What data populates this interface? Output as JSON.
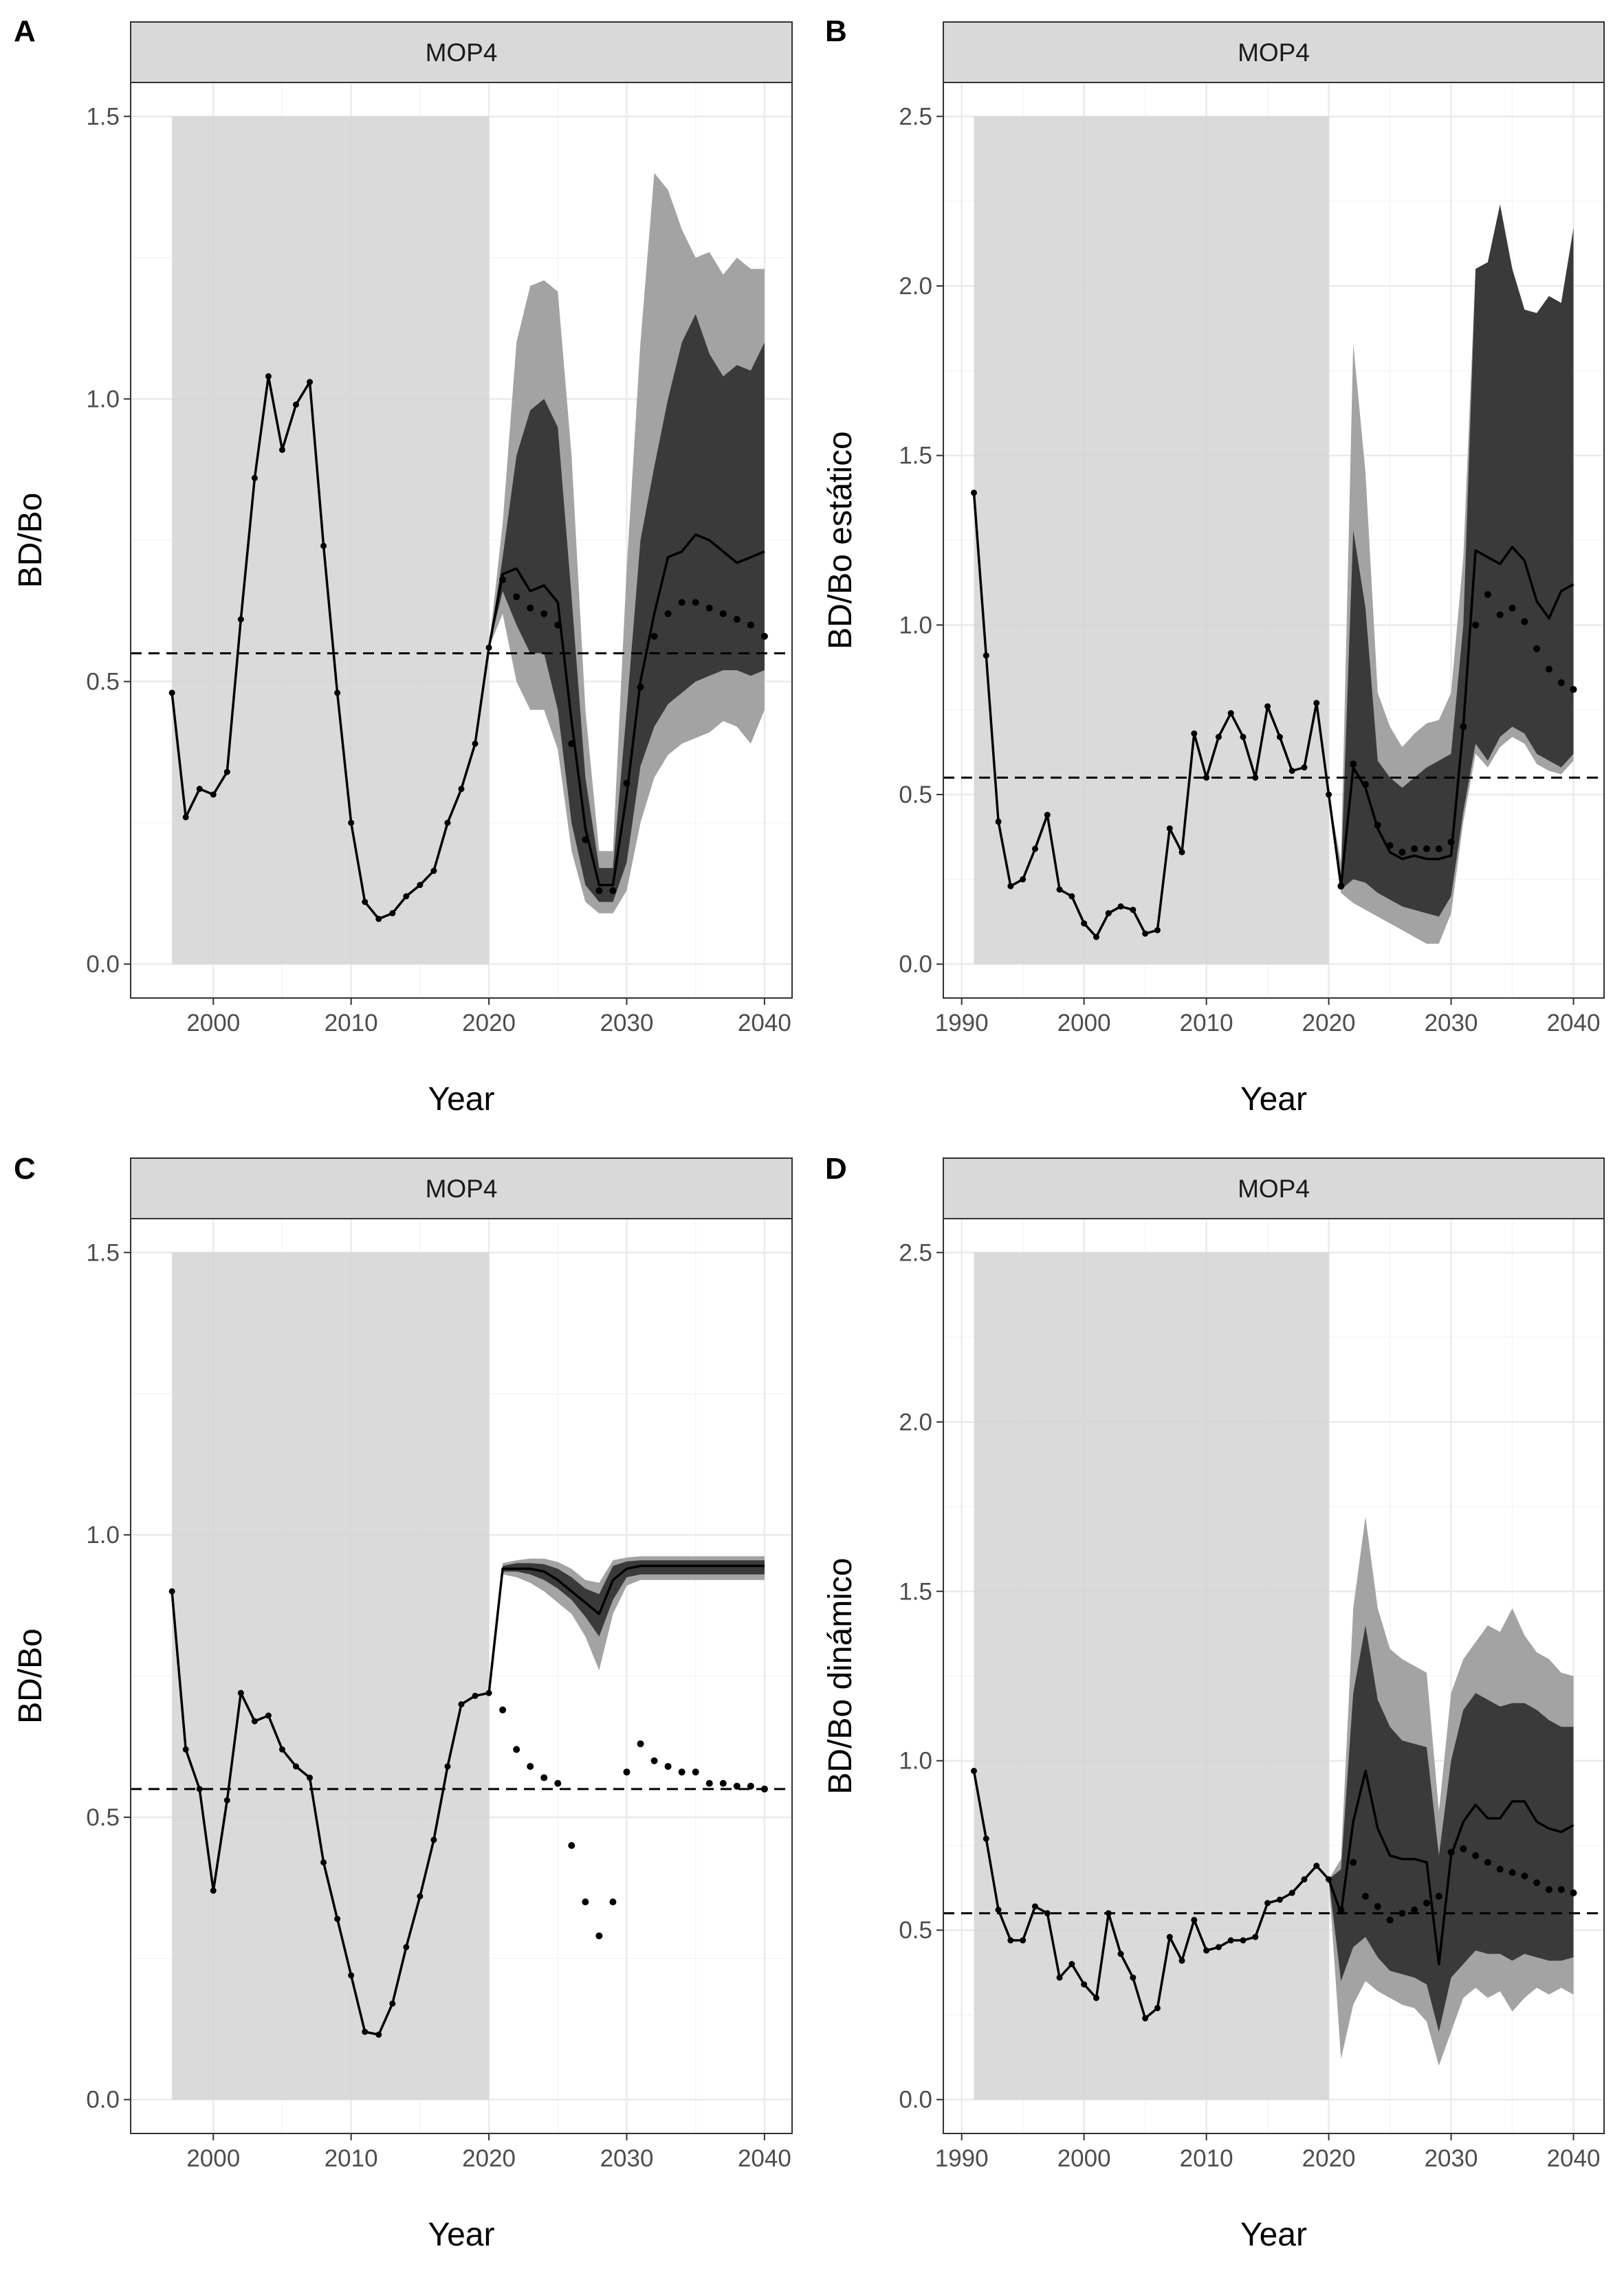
{
  "colors": {
    "shaded_period": "#d3d3d3",
    "band_outer": "#a3a3a3",
    "band_inner": "#3a3a3a",
    "line": "#000000",
    "strip": "#d9d9d9",
    "grid_major": "#ebebeb",
    "grid_minor": "#f5f5f5"
  },
  "chart_data": [
    {
      "tag": "A",
      "type": "line",
      "strip": "MOP4",
      "xlabel": "Year",
      "ylabel": "BD/Bo",
      "xlim": [
        1994,
        2042
      ],
      "ylim": [
        -0.06,
        1.56
      ],
      "xticks": [
        2000,
        2010,
        2020,
        2030,
        2040
      ],
      "yticks": [
        "0.0",
        "0.5",
        "1.0",
        "1.5"
      ],
      "grid": true,
      "reference_line": 0.55,
      "shaded_period": {
        "x": [
          1997,
          2020
        ],
        "y": [
          0,
          1.5
        ]
      },
      "historical": {
        "x": [
          1997,
          1998,
          1999,
          2000,
          2001,
          2002,
          2003,
          2004,
          2005,
          2006,
          2007,
          2008,
          2009,
          2010,
          2011,
          2012,
          2013,
          2014,
          2015,
          2016,
          2017,
          2018,
          2019,
          2020
        ],
        "y": [
          0.48,
          0.26,
          0.31,
          0.3,
          0.34,
          0.61,
          0.86,
          1.04,
          0.91,
          0.99,
          1.03,
          0.74,
          0.48,
          0.25,
          0.11,
          0.08,
          0.09,
          0.12,
          0.14,
          0.165,
          0.25,
          0.31,
          0.39,
          0.56
        ]
      },
      "projection": {
        "x": [
          2020,
          2021,
          2022,
          2023,
          2024,
          2025,
          2026,
          2027,
          2028,
          2029,
          2030,
          2031,
          2032,
          2033,
          2034,
          2035,
          2036,
          2037,
          2038,
          2039,
          2040
        ],
        "median": [
          0.56,
          0.69,
          0.7,
          0.66,
          0.67,
          0.64,
          0.43,
          0.24,
          0.14,
          0.14,
          0.3,
          0.5,
          0.62,
          0.72,
          0.73,
          0.76,
          0.75,
          0.73,
          0.71,
          0.72,
          0.73
        ],
        "inner_low": [
          0.56,
          0.66,
          0.6,
          0.55,
          0.55,
          0.45,
          0.25,
          0.14,
          0.11,
          0.11,
          0.18,
          0.35,
          0.42,
          0.46,
          0.48,
          0.5,
          0.51,
          0.52,
          0.52,
          0.51,
          0.52
        ],
        "inner_high": [
          0.56,
          0.72,
          0.9,
          0.98,
          1.0,
          0.95,
          0.65,
          0.33,
          0.17,
          0.17,
          0.45,
          0.75,
          0.88,
          1.0,
          1.1,
          1.15,
          1.08,
          1.04,
          1.06,
          1.05,
          1.1
        ],
        "outer_low": [
          0.56,
          0.62,
          0.5,
          0.45,
          0.45,
          0.38,
          0.2,
          0.11,
          0.09,
          0.09,
          0.13,
          0.25,
          0.33,
          0.37,
          0.39,
          0.4,
          0.41,
          0.43,
          0.42,
          0.39,
          0.45
        ],
        "outer_high": [
          0.56,
          0.78,
          1.1,
          1.2,
          1.21,
          1.19,
          0.9,
          0.45,
          0.2,
          0.2,
          0.7,
          1.1,
          1.4,
          1.37,
          1.3,
          1.25,
          1.26,
          1.22,
          1.25,
          1.23,
          1.23
        ],
        "deterministic": [
          0.56,
          0.68,
          0.65,
          0.63,
          0.62,
          0.6,
          0.39,
          0.22,
          0.13,
          0.13,
          0.32,
          0.49,
          0.58,
          0.62,
          0.64,
          0.64,
          0.63,
          0.62,
          0.61,
          0.6,
          0.58
        ]
      }
    },
    {
      "tag": "B",
      "type": "line",
      "strip": "MOP4",
      "xlabel": "Year",
      "ylabel": "BD/Bo estático",
      "xlim": [
        1988.5,
        2042.5
      ],
      "ylim": [
        -0.1,
        2.6
      ],
      "xticks": [
        1990,
        2000,
        2010,
        2020,
        2030,
        2040
      ],
      "yticks": [
        "0.0",
        "0.5",
        "1.0",
        "1.5",
        "2.0",
        "2.5"
      ],
      "grid": true,
      "reference_line": 0.55,
      "shaded_period": {
        "x": [
          1991,
          2020
        ],
        "y": [
          0,
          2.5
        ]
      },
      "historical": {
        "x": [
          1991,
          1992,
          1993,
          1994,
          1995,
          1996,
          1997,
          1998,
          1999,
          2000,
          2001,
          2002,
          2003,
          2004,
          2005,
          2006,
          2007,
          2008,
          2009,
          2010,
          2011,
          2012,
          2013,
          2014,
          2015,
          2016,
          2017,
          2018,
          2019,
          2020
        ],
        "y": [
          1.39,
          0.91,
          0.42,
          0.23,
          0.25,
          0.34,
          0.44,
          0.22,
          0.2,
          0.12,
          0.08,
          0.15,
          0.17,
          0.16,
          0.09,
          0.1,
          0.4,
          0.33,
          0.68,
          0.55,
          0.67,
          0.74,
          0.67,
          0.55,
          0.76,
          0.67,
          0.57,
          0.58,
          0.77,
          0.5
        ]
      },
      "projection": {
        "x": [
          2020,
          2021,
          2022,
          2023,
          2024,
          2025,
          2026,
          2027,
          2028,
          2029,
          2030,
          2031,
          2032,
          2033,
          2034,
          2035,
          2036,
          2037,
          2038,
          2039,
          2040
        ],
        "median": [
          0.5,
          0.23,
          0.58,
          0.52,
          0.4,
          0.33,
          0.31,
          0.32,
          0.31,
          0.31,
          0.32,
          0.7,
          1.22,
          1.2,
          1.18,
          1.23,
          1.19,
          1.07,
          1.02,
          1.1,
          1.12
        ],
        "inner_low": [
          0.5,
          0.22,
          0.25,
          0.24,
          0.21,
          0.19,
          0.17,
          0.16,
          0.15,
          0.14,
          0.2,
          0.45,
          0.65,
          0.6,
          0.67,
          0.7,
          0.68,
          0.62,
          0.6,
          0.58,
          0.62
        ],
        "inner_high": [
          0.5,
          0.26,
          1.28,
          1.05,
          0.6,
          0.55,
          0.52,
          0.55,
          0.58,
          0.6,
          0.62,
          1.0,
          2.05,
          2.07,
          2.24,
          2.05,
          1.93,
          1.92,
          1.97,
          1.95,
          2.17
        ],
        "outer_low": [
          0.5,
          0.21,
          0.18,
          0.16,
          0.14,
          0.12,
          0.1,
          0.08,
          0.06,
          0.06,
          0.15,
          0.42,
          0.62,
          0.58,
          0.64,
          0.67,
          0.65,
          0.59,
          0.57,
          0.56,
          0.6
        ],
        "outer_high": [
          0.5,
          0.3,
          1.83,
          1.45,
          0.8,
          0.7,
          0.64,
          0.68,
          0.71,
          0.72,
          0.8,
          1.2,
          2.05,
          2.07,
          2.24,
          2.05,
          1.93,
          1.92,
          1.97,
          1.95,
          2.17
        ],
        "deterministic": [
          0.5,
          0.23,
          0.59,
          0.53,
          0.41,
          0.35,
          0.33,
          0.34,
          0.34,
          0.34,
          0.36,
          0.7,
          1.0,
          1.09,
          1.03,
          1.05,
          1.01,
          0.93,
          0.87,
          0.83,
          0.81
        ]
      }
    },
    {
      "tag": "C",
      "type": "line",
      "strip": "MOP4",
      "xlabel": "Year",
      "ylabel": "BD/Bo",
      "xlim": [
        1994,
        2042
      ],
      "ylim": [
        -0.06,
        1.56
      ],
      "xticks": [
        2000,
        2010,
        2020,
        2030,
        2040
      ],
      "yticks": [
        "0.0",
        "0.5",
        "1.0",
        "1.5"
      ],
      "grid": true,
      "reference_line": 0.55,
      "shaded_period": {
        "x": [
          1997,
          2020
        ],
        "y": [
          0,
          1.5
        ]
      },
      "historical": {
        "x": [
          1997,
          1998,
          1999,
          2000,
          2001,
          2002,
          2003,
          2004,
          2005,
          2006,
          2007,
          2008,
          2009,
          2010,
          2011,
          2012,
          2013,
          2014,
          2015,
          2016,
          2017,
          2018,
          2019,
          2020
        ],
        "y": [
          0.9,
          0.62,
          0.55,
          0.37,
          0.53,
          0.72,
          0.67,
          0.68,
          0.62,
          0.59,
          0.57,
          0.42,
          0.32,
          0.22,
          0.12,
          0.115,
          0.17,
          0.27,
          0.36,
          0.46,
          0.59,
          0.7,
          0.715,
          0.72
        ]
      },
      "projection": {
        "x": [
          2020,
          2021,
          2022,
          2023,
          2024,
          2025,
          2026,
          2027,
          2028,
          2029,
          2030,
          2031,
          2032,
          2033,
          2034,
          2035,
          2036,
          2037,
          2038,
          2039,
          2040
        ],
        "median": [
          0.72,
          0.94,
          0.94,
          0.94,
          0.935,
          0.92,
          0.9,
          0.88,
          0.86,
          0.92,
          0.94,
          0.945,
          0.945,
          0.945,
          0.945,
          0.945,
          0.945,
          0.945,
          0.945,
          0.945,
          0.945
        ],
        "inner_low": [
          0.72,
          0.935,
          0.935,
          0.93,
          0.92,
          0.905,
          0.885,
          0.855,
          0.82,
          0.885,
          0.925,
          0.93,
          0.93,
          0.93,
          0.93,
          0.93,
          0.93,
          0.93,
          0.93,
          0.93,
          0.93
        ],
        "inner_high": [
          0.72,
          0.945,
          0.95,
          0.95,
          0.948,
          0.94,
          0.925,
          0.905,
          0.895,
          0.945,
          0.953,
          0.955,
          0.955,
          0.955,
          0.955,
          0.955,
          0.955,
          0.955,
          0.955,
          0.955,
          0.955
        ],
        "outer_low": [
          0.72,
          0.93,
          0.925,
          0.915,
          0.9,
          0.88,
          0.86,
          0.82,
          0.76,
          0.86,
          0.91,
          0.92,
          0.92,
          0.92,
          0.92,
          0.92,
          0.92,
          0.92,
          0.92,
          0.92,
          0.92
        ],
        "outer_high": [
          0.72,
          0.95,
          0.955,
          0.958,
          0.958,
          0.952,
          0.94,
          0.92,
          0.915,
          0.955,
          0.96,
          0.962,
          0.962,
          0.962,
          0.962,
          0.962,
          0.962,
          0.962,
          0.962,
          0.962,
          0.962
        ],
        "deterministic": [
          0.72,
          0.69,
          0.62,
          0.59,
          0.57,
          0.56,
          0.45,
          0.35,
          0.29,
          0.35,
          0.58,
          0.63,
          0.6,
          0.59,
          0.58,
          0.58,
          0.56,
          0.56,
          0.555,
          0.555,
          0.55
        ]
      }
    },
    {
      "tag": "D",
      "type": "line",
      "strip": "MOP4",
      "xlabel": "Year",
      "ylabel": "BD/Bo dinámico",
      "xlim": [
        1988.5,
        2042.5
      ],
      "ylim": [
        -0.1,
        2.6
      ],
      "xticks": [
        1990,
        2000,
        2010,
        2020,
        2030,
        2040
      ],
      "yticks": [
        "0.0",
        "0.5",
        "1.0",
        "1.5",
        "2.0",
        "2.5"
      ],
      "grid": true,
      "reference_line": 0.55,
      "shaded_period": {
        "x": [
          1991,
          2020
        ],
        "y": [
          0,
          2.5
        ]
      },
      "historical": {
        "x": [
          1991,
          1992,
          1993,
          1994,
          1995,
          1996,
          1997,
          1998,
          1999,
          2000,
          2001,
          2002,
          2003,
          2004,
          2005,
          2006,
          2007,
          2008,
          2009,
          2010,
          2011,
          2012,
          2013,
          2014,
          2015,
          2016,
          2017,
          2018,
          2019,
          2020
        ],
        "y": [
          0.97,
          0.77,
          0.56,
          0.47,
          0.47,
          0.57,
          0.55,
          0.36,
          0.4,
          0.34,
          0.3,
          0.55,
          0.43,
          0.36,
          0.24,
          0.27,
          0.48,
          0.41,
          0.53,
          0.44,
          0.45,
          0.47,
          0.47,
          0.48,
          0.58,
          0.59,
          0.61,
          0.65,
          0.69,
          0.65
        ]
      },
      "projection": {
        "x": [
          2020,
          2021,
          2022,
          2023,
          2024,
          2025,
          2026,
          2027,
          2028,
          2029,
          2030,
          2031,
          2032,
          2033,
          2034,
          2035,
          2036,
          2037,
          2038,
          2039,
          2040
        ],
        "median": [
          0.65,
          0.55,
          0.82,
          0.97,
          0.8,
          0.72,
          0.71,
          0.71,
          0.7,
          0.4,
          0.72,
          0.82,
          0.87,
          0.83,
          0.83,
          0.88,
          0.88,
          0.82,
          0.8,
          0.79,
          0.81
        ],
        "inner_low": [
          0.65,
          0.35,
          0.45,
          0.48,
          0.42,
          0.38,
          0.37,
          0.36,
          0.34,
          0.2,
          0.36,
          0.4,
          0.44,
          0.43,
          0.43,
          0.41,
          0.43,
          0.42,
          0.41,
          0.41,
          0.42
        ],
        "inner_high": [
          0.65,
          0.68,
          1.2,
          1.4,
          1.18,
          1.1,
          1.06,
          1.05,
          1.04,
          0.72,
          1.0,
          1.15,
          1.2,
          1.18,
          1.16,
          1.17,
          1.17,
          1.15,
          1.12,
          1.1,
          1.1
        ],
        "outer_low": [
          0.65,
          0.12,
          0.28,
          0.35,
          0.32,
          0.3,
          0.28,
          0.27,
          0.23,
          0.1,
          0.2,
          0.3,
          0.33,
          0.3,
          0.32,
          0.26,
          0.3,
          0.33,
          0.31,
          0.33,
          0.31
        ],
        "outer_high": [
          0.65,
          0.71,
          1.45,
          1.72,
          1.45,
          1.33,
          1.3,
          1.28,
          1.26,
          0.85,
          1.2,
          1.3,
          1.35,
          1.4,
          1.38,
          1.45,
          1.37,
          1.32,
          1.3,
          1.26,
          1.25
        ],
        "deterministic": [
          0.65,
          0.56,
          0.7,
          0.6,
          0.57,
          0.53,
          0.55,
          0.56,
          0.58,
          0.6,
          0.73,
          0.74,
          0.72,
          0.7,
          0.68,
          0.67,
          0.66,
          0.64,
          0.62,
          0.62,
          0.61
        ]
      }
    }
  ]
}
